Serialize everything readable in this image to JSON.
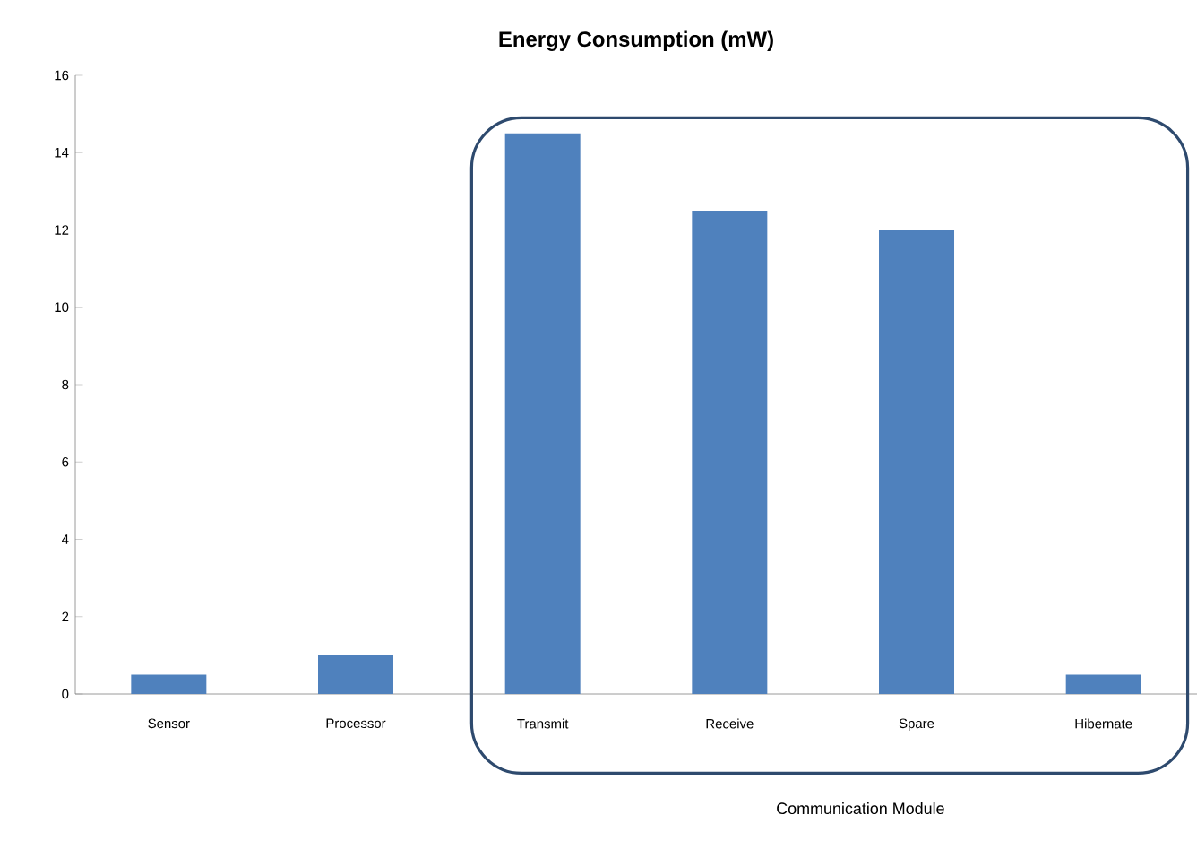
{
  "chart_data": {
    "type": "bar",
    "title": "Energy Consumption (mW)",
    "categories": [
      "Sensor",
      "Processor",
      "Transmit",
      "Receive",
      "Spare",
      "Hibernate"
    ],
    "values": [
      0.5,
      1,
      14.5,
      12.5,
      12,
      0.5
    ],
    "color": "#4f81bd",
    "ylim": [
      0,
      16
    ],
    "yticks": [
      0,
      2,
      4,
      6,
      8,
      10,
      12,
      14,
      16
    ],
    "grid": false,
    "annotations": [
      "Communication Module"
    ]
  }
}
